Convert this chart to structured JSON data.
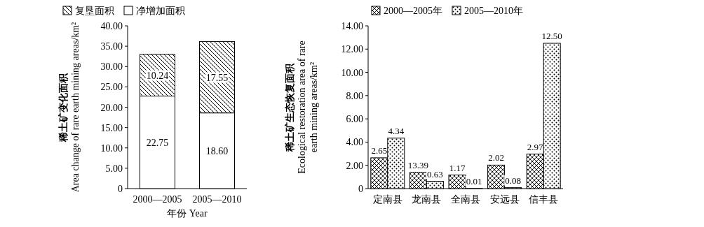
{
  "chart_data": [
    {
      "type": "bar",
      "stacked": true,
      "categories": [
        "2000—2005",
        "2005—2010"
      ],
      "xlabel": "年份 Year",
      "ylabel": "稀土矿变化面积 Area change of rare earth mining areas/km²",
      "ylim": [
        0,
        40
      ],
      "yticks": [
        {
          "value": 0,
          "label": "0"
        },
        {
          "value": 5,
          "label": "5.00"
        },
        {
          "value": 10,
          "label": "10.00"
        },
        {
          "value": 15,
          "label": "15.00"
        },
        {
          "value": 20,
          "label": "20.00"
        },
        {
          "value": 25,
          "label": "25.00"
        },
        {
          "value": 30,
          "label": "30.00"
        },
        {
          "value": 35,
          "label": "35.00"
        },
        {
          "value": 40,
          "label": "40.00"
        }
      ],
      "series": [
        {
          "name": "净增加面积",
          "values": [
            22.75,
            18.6
          ],
          "value_labels": [
            "22.75",
            "18.60"
          ]
        },
        {
          "name": "复垦面积",
          "values": [
            10.24,
            17.55
          ],
          "value_labels": [
            "10.24",
            "17.55"
          ]
        }
      ],
      "legend": "top"
    },
    {
      "type": "bar",
      "categories": [
        "定南县",
        "龙南县",
        "全南县",
        "安远县",
        "信丰县"
      ],
      "ylabel": "稀土矿生态恢复面积 Ecological restoration area of rare earth mining areas/km²",
      "ylim": [
        0,
        14
      ],
      "yticks": [
        {
          "value": 0,
          "label": "0"
        },
        {
          "value": 2,
          "label": "2.00"
        },
        {
          "value": 4,
          "label": "4.00"
        },
        {
          "value": 6,
          "label": "6.00"
        },
        {
          "value": 8,
          "label": "8.00"
        },
        {
          "value": 10,
          "label": "10.00"
        },
        {
          "value": 12,
          "label": "12.00"
        },
        {
          "value": 14,
          "label": "14.00"
        }
      ],
      "series": [
        {
          "name": "2000—2005年",
          "values": [
            2.65,
            1.39,
            1.17,
            2.02,
            2.97
          ],
          "value_labels": [
            "2.65",
            null,
            "1.17",
            "2.02",
            "2.97"
          ]
        },
        {
          "name": "2005—2010年",
          "values": [
            4.34,
            0.63,
            0.01,
            0.08,
            12.5
          ],
          "value_labels": [
            "4.34",
            "0.63",
            "0.01",
            "0.08",
            "12.50"
          ]
        }
      ],
      "annotations": [
        {
          "text": "13.39",
          "x": "龙南县",
          "y": 1.39
        }
      ],
      "legend": "top"
    }
  ]
}
